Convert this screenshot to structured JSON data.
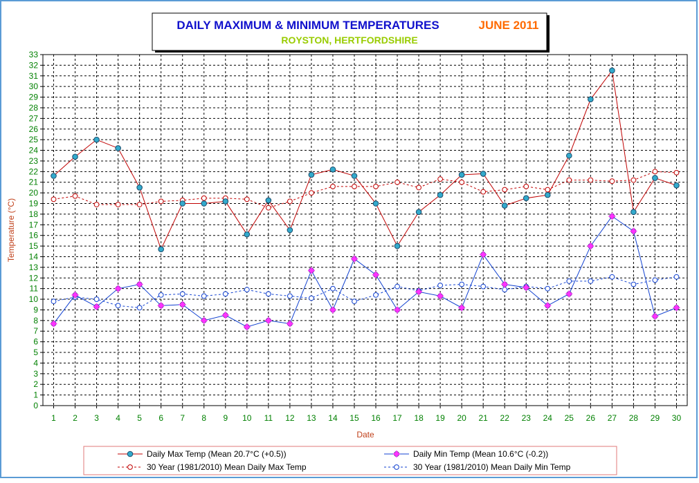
{
  "colors": {
    "title_main": "#1010cc",
    "title_month": "#ff6a00",
    "title_sub": "#99cc00",
    "axis_label": "#c0401a",
    "tick_label": "#008000",
    "max_line": "#c00000",
    "max_marker": "#33aacc",
    "min_line": "#1040d0",
    "min_marker": "#ff33ff",
    "mean_max": "#c00000",
    "mean_min": "#1040d0",
    "frame": "#5a9bd5"
  },
  "chart_data": {
    "type": "line",
    "title": "DAILY MAXIMUM &  MINIMUM  TEMPERATURES",
    "title_month": "JUNE 2011",
    "subtitle": "ROYSTON, HERTFORDSHIRE",
    "xlabel": "Date",
    "ylabel": "Temperature (°C)",
    "xlim": [
      1,
      30
    ],
    "ylim": [
      0,
      33
    ],
    "grid": true,
    "legend_position": "bottom",
    "x": [
      1,
      2,
      3,
      4,
      5,
      6,
      7,
      8,
      9,
      10,
      11,
      12,
      13,
      14,
      15,
      16,
      17,
      18,
      19,
      20,
      21,
      22,
      23,
      24,
      25,
      26,
      27,
      28,
      29,
      30
    ],
    "y_ticks": [
      0,
      1,
      2,
      3,
      4,
      5,
      6,
      7,
      8,
      9,
      10,
      11,
      12,
      13,
      14,
      15,
      16,
      17,
      18,
      19,
      20,
      21,
      22,
      23,
      24,
      25,
      26,
      27,
      28,
      29,
      30,
      31,
      32,
      33
    ],
    "series": [
      {
        "key": "max",
        "name": "Daily Max Temp (Mean 20.7°C (+0.5))",
        "style": "solid-filled",
        "values": [
          21.6,
          23.4,
          25.0,
          24.2,
          20.5,
          14.7,
          19.0,
          19.0,
          19.2,
          16.1,
          19.3,
          16.5,
          21.7,
          22.2,
          21.6,
          19.0,
          15.0,
          18.2,
          19.8,
          21.7,
          21.8,
          18.8,
          19.5,
          19.8,
          23.5,
          28.8,
          31.5,
          18.2,
          21.4,
          20.7
        ]
      },
      {
        "key": "min",
        "name": "Daily Min Temp (Mean 10.6°C (-0.2))",
        "style": "solid-star",
        "values": [
          7.7,
          10.4,
          9.3,
          11.0,
          11.4,
          9.4,
          9.5,
          8.0,
          8.5,
          7.4,
          8.0,
          7.7,
          12.7,
          9.0,
          13.8,
          12.3,
          9.0,
          10.7,
          10.3,
          9.2,
          14.2,
          11.4,
          11.1,
          9.4,
          10.5,
          15.0,
          17.8,
          16.4,
          8.4,
          9.2
        ]
      },
      {
        "key": "mean_max",
        "name": "30 Year (1981/2010) Mean Daily Max Temp",
        "style": "dashed-open",
        "values": [
          19.4,
          19.7,
          18.9,
          18.9,
          18.9,
          19.2,
          19.3,
          19.5,
          19.5,
          19.4,
          18.6,
          19.2,
          20.0,
          20.6,
          20.6,
          20.6,
          21.0,
          20.5,
          21.3,
          21.0,
          20.1,
          20.3,
          20.6,
          20.3,
          21.2,
          21.2,
          21.1,
          21.2,
          22.0,
          21.9
        ]
      },
      {
        "key": "mean_min",
        "name": "30 Year (1981/2010) Mean Daily Min Temp",
        "style": "dashed-open",
        "values": [
          9.8,
          10.2,
          10.0,
          9.4,
          9.2,
          10.4,
          10.5,
          10.3,
          10.5,
          10.9,
          10.5,
          10.3,
          10.1,
          11.0,
          9.8,
          10.4,
          11.2,
          10.8,
          11.3,
          11.4,
          11.2,
          10.9,
          11.2,
          11.0,
          11.7,
          11.7,
          12.1,
          11.4,
          11.8,
          12.1
        ]
      }
    ]
  }
}
